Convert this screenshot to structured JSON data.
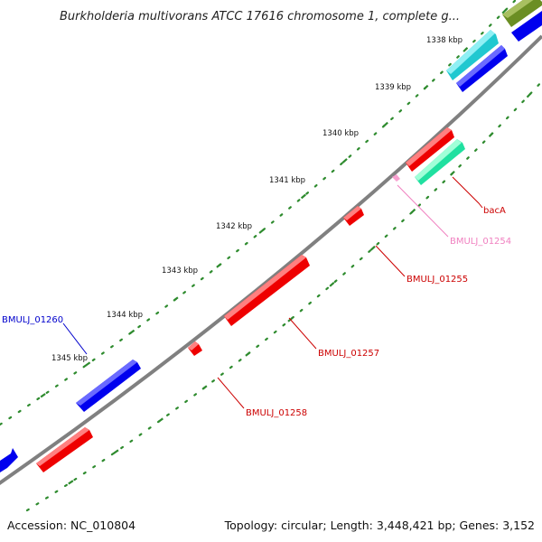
{
  "header": {
    "title": "Burkholderia multivorans ATCC 17616 chromosome 1, complete g..."
  },
  "footer": {
    "accession": "Accession: NC_010804",
    "summary": "Topology: circular; Length: 3,448,421 bp; Genes: 3,152"
  },
  "map": {
    "backbone_color": "#808080",
    "tick_color": "#2e8b2e"
  },
  "ticks": [
    {
      "label": "1338 kbp"
    },
    {
      "label": "1339 kbp"
    },
    {
      "label": "1340 kbp"
    },
    {
      "label": "1341 kbp"
    },
    {
      "label": "1342 kbp"
    },
    {
      "label": "1343 kbp"
    },
    {
      "label": "1344 kbp"
    },
    {
      "label": "1345 kbp"
    }
  ],
  "features": [
    {
      "id": "olive-gene",
      "color": "#6b8e23"
    },
    {
      "id": "blue-gene-top",
      "color": "#0000ee"
    },
    {
      "id": "cyan-gene",
      "color": "#20c8d0"
    },
    {
      "id": "blue-gene-2",
      "color": "#0000ee"
    },
    {
      "id": "bacA",
      "color": "#ee0000"
    },
    {
      "id": "teal-gene",
      "color": "#20e0a0"
    },
    {
      "id": "BMULJ_01254",
      "color": "#f8a0d0"
    },
    {
      "id": "BMULJ_01255",
      "color": "#ee0000"
    },
    {
      "id": "BMULJ_01257",
      "color": "#ee0000"
    },
    {
      "id": "BMULJ_01258",
      "color": "#ee0000"
    },
    {
      "id": "BMULJ_01260",
      "color": "#0000ee"
    },
    {
      "id": "red-gene-bottom",
      "color": "#ee0000"
    },
    {
      "id": "blue-gene-bottom",
      "color": "#0000ee"
    }
  ],
  "gene_labels": [
    {
      "text": "bacA",
      "color": "#cc0000"
    },
    {
      "text": "BMULJ_01254",
      "color": "#f080c0"
    },
    {
      "text": "BMULJ_01255",
      "color": "#cc0000"
    },
    {
      "text": "BMULJ_01257",
      "color": "#cc0000"
    },
    {
      "text": "BMULJ_01258",
      "color": "#cc0000"
    },
    {
      "text": "BMULJ_01260",
      "color": "#0000cc"
    }
  ]
}
